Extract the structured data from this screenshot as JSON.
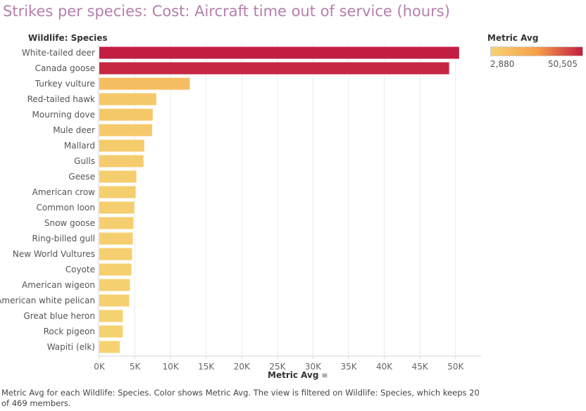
{
  "title": "Strikes per species: Cost: Aircraft time out of service (hours)",
  "row_header": "Wildlife: Species",
  "legend": {
    "title": "Metric Avg",
    "min_label": "2,880",
    "max_label": "50,505",
    "color_low": "#f5d372",
    "color_mid": "#f7a04b",
    "color_high": "#c21e41"
  },
  "x_axis_title": "Metric Avg",
  "sort_icon": "sort-descending-icon",
  "caption": "Metric Avg for each Wildlife: Species.  Color shows Metric Avg. The view is filtered on Wildlife: Species, which keeps 20 of 469 members.",
  "chart_data": {
    "type": "bar",
    "orientation": "horizontal",
    "title": "Strikes per species: Cost: Aircraft time out of service (hours)",
    "xlabel": "Metric Avg",
    "ylabel": "Wildlife: Species",
    "xlim": [
      0,
      52000
    ],
    "xticks": [
      0,
      5000,
      10000,
      15000,
      20000,
      25000,
      30000,
      35000,
      40000,
      45000,
      50000
    ],
    "xtick_labels": [
      "0K",
      "5K",
      "10K",
      "15K",
      "20K",
      "25K",
      "30K",
      "35K",
      "40K",
      "45K",
      "50K"
    ],
    "categories": [
      "White-tailed deer",
      "Canada goose",
      "Turkey vulture",
      "Red-tailed hawk",
      "Mourning dove",
      "Mule deer",
      "Mallard",
      "Gulls",
      "Geese",
      "American crow",
      "Common loon",
      "Snow goose",
      "Ring-billed gull",
      "New World Vultures",
      "Coyote",
      "American wigeon",
      "American white pelican",
      "Great blue heron",
      "Rock pigeon",
      "Wapiti (elk)"
    ],
    "values": [
      50505,
      49100,
      12700,
      8000,
      7500,
      7400,
      6300,
      6200,
      5200,
      5100,
      4900,
      4800,
      4700,
      4600,
      4500,
      4300,
      4200,
      3300,
      3300,
      2880
    ],
    "color_min": 2880,
    "color_max": 50505,
    "grid": true
  }
}
